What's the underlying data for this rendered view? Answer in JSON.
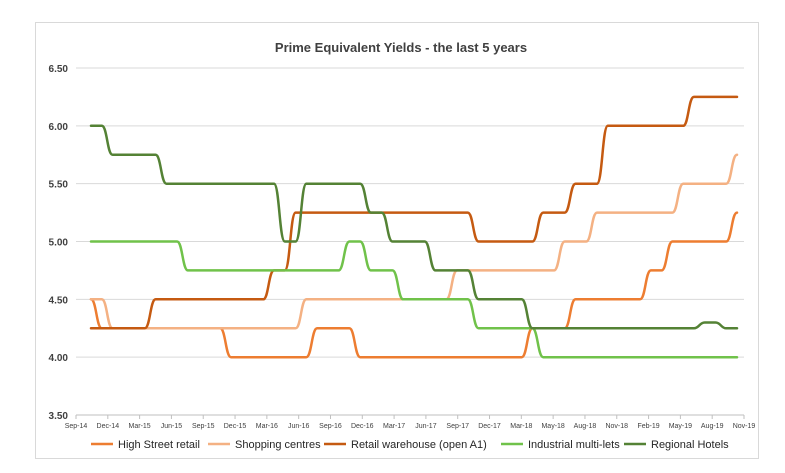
{
  "chart_data": {
    "type": "line",
    "title": "Prime Equivalent Yields - the last 5 years",
    "xlabel": "",
    "ylabel": "",
    "ylim": [
      3.5,
      6.5
    ],
    "yticks": [
      "3.50",
      "4.00",
      "4.50",
      "5.00",
      "5.50",
      "6.00",
      "6.50"
    ],
    "x_tick_labels": [
      "Sep-14",
      "Dec-14",
      "Mar-15",
      "Jun-15",
      "Sep-15",
      "Dec-15",
      "Mar-16",
      "Jun-16",
      "Sep-16",
      "Dec-16",
      "Mar-17",
      "Jun-17",
      "Sep-17",
      "Dec-17",
      "Mar-18",
      "May-18",
      "Aug-18",
      "Nov-18",
      "Feb-19",
      "May-19",
      "Aug-19",
      "Nov-19"
    ],
    "x": [
      "Oct-14",
      "Nov-14",
      "Dec-14",
      "Jan-15",
      "Feb-15",
      "Mar-15",
      "Apr-15",
      "May-15",
      "Jun-15",
      "Jul-15",
      "Aug-15",
      "Sep-15",
      "Oct-15",
      "Nov-15",
      "Dec-15",
      "Jan-16",
      "Feb-16",
      "Mar-16",
      "Apr-16",
      "May-16",
      "Jun-16",
      "Jul-16",
      "Aug-16",
      "Sep-16",
      "Oct-16",
      "Nov-16",
      "Dec-16",
      "Jan-17",
      "Feb-17",
      "Mar-17",
      "Apr-17",
      "May-17",
      "Jun-17",
      "Jul-17",
      "Aug-17",
      "Sep-17",
      "Oct-17",
      "Nov-17",
      "Dec-17",
      "Jan-18",
      "Feb-18",
      "Mar-18",
      "Apr-18",
      "May-18",
      "Jun-18",
      "Jul-18",
      "Aug-18",
      "Sep-18",
      "Oct-18",
      "Nov-18",
      "Dec-18",
      "Jan-19",
      "Feb-19",
      "Mar-19",
      "Apr-19",
      "May-19",
      "Jun-19",
      "Jul-19",
      "Aug-19",
      "Sep-19",
      "Oct-19"
    ],
    "legend_position": "bottom",
    "grid": "horizontal",
    "series": [
      {
        "name": "High Street retail",
        "color": "#ED7D31",
        "values": [
          4.5,
          4.25,
          4.25,
          4.25,
          4.25,
          4.25,
          4.25,
          4.25,
          4.25,
          4.25,
          4.25,
          4.25,
          4.25,
          4.0,
          4.0,
          4.0,
          4.0,
          4.0,
          4.0,
          4.0,
          4.0,
          4.25,
          4.25,
          4.25,
          4.25,
          4.0,
          4.0,
          4.0,
          4.0,
          4.0,
          4.0,
          4.0,
          4.0,
          4.0,
          4.0,
          4.0,
          4.0,
          4.0,
          4.0,
          4.0,
          4.0,
          4.25,
          4.25,
          4.25,
          4.25,
          4.5,
          4.5,
          4.5,
          4.5,
          4.5,
          4.5,
          4.5,
          4.75,
          4.75,
          5.0,
          5.0,
          5.0,
          5.0,
          5.0,
          5.0,
          5.25
        ]
      },
      {
        "name": "Shopping centres",
        "color": "#F4B183",
        "values": [
          4.5,
          4.5,
          4.25,
          4.25,
          4.25,
          4.25,
          4.25,
          4.25,
          4.25,
          4.25,
          4.25,
          4.25,
          4.25,
          4.25,
          4.25,
          4.25,
          4.25,
          4.25,
          4.25,
          4.25,
          4.5,
          4.5,
          4.5,
          4.5,
          4.5,
          4.5,
          4.5,
          4.5,
          4.5,
          4.5,
          4.5,
          4.5,
          4.5,
          4.5,
          4.75,
          4.75,
          4.75,
          4.75,
          4.75,
          4.75,
          4.75,
          4.75,
          4.75,
          4.75,
          5.0,
          5.0,
          5.0,
          5.25,
          5.25,
          5.25,
          5.25,
          5.25,
          5.25,
          5.25,
          5.25,
          5.5,
          5.5,
          5.5,
          5.5,
          5.5,
          5.75
        ]
      },
      {
        "name": "Retail warehouse (open A1)",
        "color": "#C55A11",
        "values": [
          4.25,
          4.25,
          4.25,
          4.25,
          4.25,
          4.25,
          4.5,
          4.5,
          4.5,
          4.5,
          4.5,
          4.5,
          4.5,
          4.5,
          4.5,
          4.5,
          4.5,
          4.75,
          4.75,
          5.25,
          5.25,
          5.25,
          5.25,
          5.25,
          5.25,
          5.25,
          5.25,
          5.25,
          5.25,
          5.25,
          5.25,
          5.25,
          5.25,
          5.25,
          5.25,
          5.25,
          5.0,
          5.0,
          5.0,
          5.0,
          5.0,
          5.0,
          5.25,
          5.25,
          5.25,
          5.5,
          5.5,
          5.5,
          6.0,
          6.0,
          6.0,
          6.0,
          6.0,
          6.0,
          6.0,
          6.0,
          6.25,
          6.25,
          6.25,
          6.25,
          6.25
        ]
      },
      {
        "name": "Industrial multi-lets",
        "color": "#70C24A",
        "values": [
          5.0,
          5.0,
          5.0,
          5.0,
          5.0,
          5.0,
          5.0,
          5.0,
          5.0,
          4.75,
          4.75,
          4.75,
          4.75,
          4.75,
          4.75,
          4.75,
          4.75,
          4.75,
          4.75,
          4.75,
          4.75,
          4.75,
          4.75,
          4.75,
          5.0,
          5.0,
          4.75,
          4.75,
          4.75,
          4.5,
          4.5,
          4.5,
          4.5,
          4.5,
          4.5,
          4.5,
          4.25,
          4.25,
          4.25,
          4.25,
          4.25,
          4.25,
          4.0,
          4.0,
          4.0,
          4.0,
          4.0,
          4.0,
          4.0,
          4.0,
          4.0,
          4.0,
          4.0,
          4.0,
          4.0,
          4.0,
          4.0,
          4.0,
          4.0,
          4.0,
          4.0
        ]
      },
      {
        "name": "Regional Hotels",
        "color": "#548235",
        "values": [
          6.0,
          6.0,
          5.75,
          5.75,
          5.75,
          5.75,
          5.75,
          5.5,
          5.5,
          5.5,
          5.5,
          5.5,
          5.5,
          5.5,
          5.5,
          5.5,
          5.5,
          5.5,
          5.0,
          5.0,
          5.5,
          5.5,
          5.5,
          5.5,
          5.5,
          5.5,
          5.25,
          5.25,
          5.0,
          5.0,
          5.0,
          5.0,
          4.75,
          4.75,
          4.75,
          4.75,
          4.5,
          4.5,
          4.5,
          4.5,
          4.5,
          4.25,
          4.25,
          4.25,
          4.25,
          4.25,
          4.25,
          4.25,
          4.25,
          4.25,
          4.25,
          4.25,
          4.25,
          4.25,
          4.25,
          4.25,
          4.25,
          4.3,
          4.3,
          4.25,
          4.25
        ]
      }
    ]
  }
}
